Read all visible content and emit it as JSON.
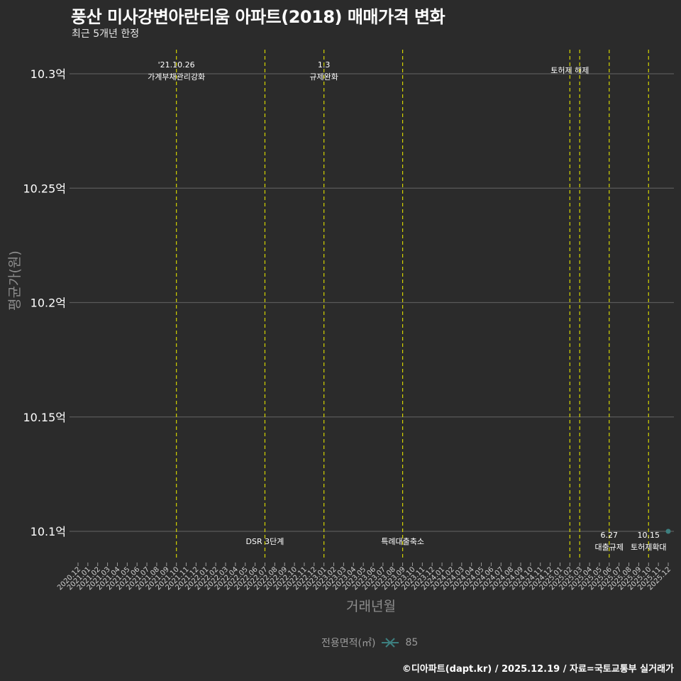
{
  "title": "풍산 미사강변아란티움 아파트(2018) 매매가격 변화",
  "subtitle": "최근 5개년 한정",
  "caption": "©디아파트(dapt.kr) / 2025.12.19 / 자료=국토교통부 실거래가",
  "colors": {
    "background": "#2b2b2b",
    "grid": "#5a5a5a",
    "event_line": "#d4d400",
    "series_85": "#3d7f7f",
    "text": "#ffffff",
    "axis_title": "#8c8c8c"
  },
  "chart_data": {
    "type": "line",
    "title": "풍산 미사강변아란티움 아파트(2018) 매매가격 변화",
    "subtitle": "최근 5개년 한정",
    "xlabel": "거래년월",
    "ylabel": "평균가(원)",
    "ylim": [
      10.085,
      10.31
    ],
    "yticks": [
      "10.1억",
      "10.15억",
      "10.2억",
      "10.25억",
      "10.3억"
    ],
    "ytick_values": [
      10.1,
      10.15,
      10.2,
      10.25,
      10.3
    ],
    "x": [
      "2020.12",
      "2021.01",
      "2021.02",
      "2021.03",
      "2021.04",
      "2021.05",
      "2021.06",
      "2021.07",
      "2021.08",
      "2021.09",
      "2021.10",
      "2021.11",
      "2021.12",
      "2022.01",
      "2022.02",
      "2022.03",
      "2022.04",
      "2022.05",
      "2022.06",
      "2022.07",
      "2022.08",
      "2022.09",
      "2022.10",
      "2022.11",
      "2022.12",
      "2023.01",
      "2023.02",
      "2023.03",
      "2023.04",
      "2023.05",
      "2023.06",
      "2023.07",
      "2023.08",
      "2023.09",
      "2023.10",
      "2023.11",
      "2023.12",
      "2024.01",
      "2024.02",
      "2024.03",
      "2024.04",
      "2024.05",
      "2024.06",
      "2024.07",
      "2024.08",
      "2024.09",
      "2024.10",
      "2024.11",
      "2024.12",
      "2025.01",
      "2025.02",
      "2025.03",
      "2025.04",
      "2025.05",
      "2025.06",
      "2025.07",
      "2025.08",
      "2025.09",
      "2025.10",
      "2025.11",
      "2025.12"
    ],
    "legend_title": "전용면적(㎡)",
    "legend_position": "bottom",
    "grid": true,
    "series": [
      {
        "name": "85",
        "points": [
          {
            "x": "2025.12",
            "y": 10.1
          }
        ]
      }
    ],
    "events": [
      {
        "x": "2021.10",
        "label_top": "'21.10.26",
        "label_bottom": "가계부채관리강화",
        "position": "top"
      },
      {
        "x": "2022.07",
        "label_top": "",
        "label_bottom": "DSR 3단계",
        "position": "bottom"
      },
      {
        "x": "2023.01",
        "label_top": "1.3",
        "label_bottom": "규제완화",
        "position": "top"
      },
      {
        "x": "2023.09",
        "label_top": "",
        "label_bottom": "특례대출축소",
        "position": "bottom"
      },
      {
        "x": "2025.02",
        "label_top": "",
        "label_bottom": "토허제 해제",
        "position": "top"
      },
      {
        "x": "2025.03",
        "label_top": "",
        "label_bottom": "",
        "position": "top"
      },
      {
        "x": "2025.06",
        "label_top": "6.27",
        "label_bottom": "대출규제",
        "position": "bottom"
      },
      {
        "x": "2025.10",
        "label_top": "10.15",
        "label_bottom": "토허제확대",
        "position": "bottom"
      }
    ]
  }
}
